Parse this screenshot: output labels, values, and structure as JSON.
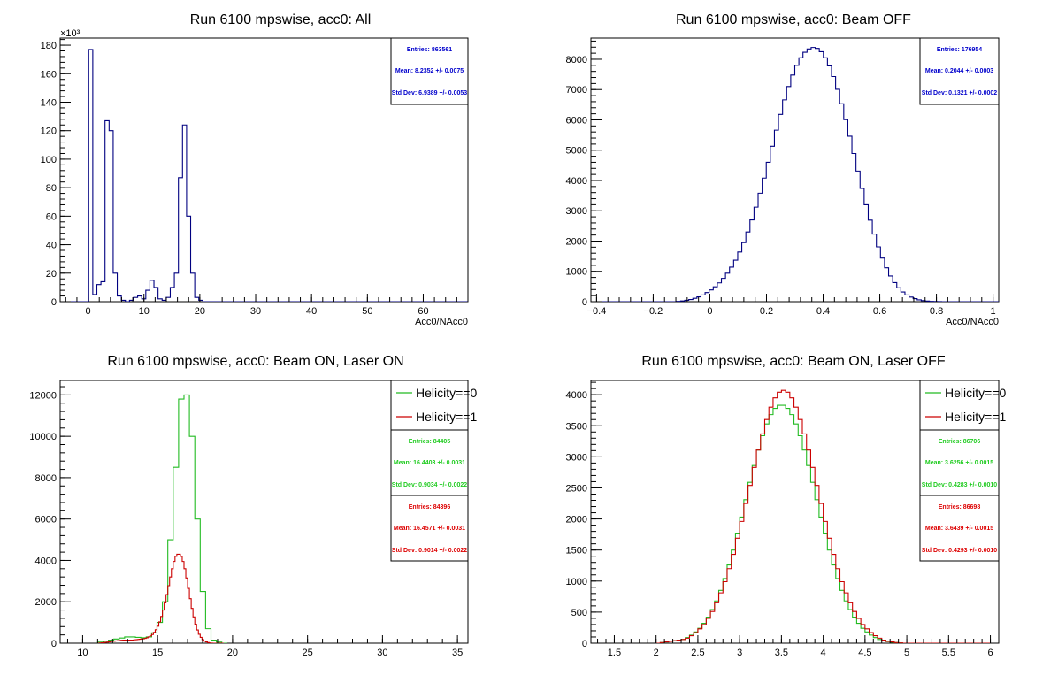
{
  "chart_data": [
    {
      "type": "histogram",
      "title": "Run 6100 mpswise, acc0: All",
      "xlabel": "Acc0/NAcc0",
      "ylabel": "",
      "xlim": [
        -5,
        68
      ],
      "ylim": [
        0,
        185
      ],
      "y_multiplier": "×10³",
      "x_ticks": [
        "0",
        "10",
        "20",
        "30",
        "40",
        "50",
        "60"
      ],
      "y_ticks": [
        "0",
        "20",
        "40",
        "60",
        "80",
        "100",
        "120",
        "140",
        "160",
        "180"
      ],
      "legend": [],
      "stats": [
        {
          "color": "#0000cc",
          "entries": "Entries: 863561",
          "mean": "Mean: 8.2352 +/- 0.0075",
          "std": "Std Dev: 6.9389 +/- 0.0053"
        }
      ],
      "series": [
        {
          "name": "",
          "color": "#000080",
          "bin_low": -5,
          "bin_width": 0.73,
          "counts": [
            0,
            0,
            0,
            0,
            0,
            0,
            0,
            177,
            5,
            12,
            14,
            127,
            120,
            20,
            4,
            1,
            0,
            1,
            3,
            4,
            2,
            8,
            15,
            10,
            2,
            1,
            3,
            10,
            20,
            87,
            124,
            60,
            20,
            3,
            1,
            0,
            0,
            0,
            0,
            0,
            0,
            0,
            0,
            0,
            0,
            0,
            0,
            0,
            0,
            0,
            0,
            0,
            0,
            0,
            0,
            0,
            0,
            0,
            0,
            0,
            0,
            0,
            0,
            0,
            0,
            0,
            0,
            0,
            0,
            0,
            0,
            0,
            0,
            0,
            0,
            0,
            0,
            0,
            0,
            0,
            0,
            0,
            0,
            0,
            0,
            0,
            0,
            0,
            0,
            0,
            0,
            0,
            0,
            0,
            0,
            0,
            0,
            0,
            0,
            0
          ]
        }
      ]
    },
    {
      "type": "histogram",
      "title": "Run 6100 mpswise, acc0: Beam OFF",
      "xlabel": "Acc0/NAcc0",
      "ylabel": "",
      "xlim": [
        -0.42,
        1.02
      ],
      "ylim": [
        0,
        8700
      ],
      "x_ticks": [
        "−0.4",
        "−0.2",
        "0",
        "0.2",
        "0.4",
        "0.6",
        "0.8",
        "1"
      ],
      "y_ticks": [
        "0",
        "1000",
        "2000",
        "3000",
        "4000",
        "5000",
        "6000",
        "7000",
        "8000"
      ],
      "legend": [],
      "stats": [
        {
          "color": "#0000cc",
          "entries": "Entries: 176954",
          "mean": "Mean: 0.2044 +/- 0.0003",
          "std": "Std Dev: 0.1321 +/- 0.0002"
        }
      ],
      "series": [
        {
          "name": "",
          "color": "#000080",
          "bin_low": -0.42,
          "bin_width": 0.0144,
          "counts": [
            0,
            0,
            0,
            0,
            0,
            0,
            0,
            0,
            0,
            0,
            0,
            0,
            0,
            0,
            0,
            0,
            0,
            0,
            0,
            0,
            0,
            10,
            25,
            45,
            70,
            110,
            160,
            220,
            300,
            390,
            490,
            620,
            770,
            940,
            1140,
            1370,
            1640,
            1950,
            2300,
            2700,
            3120,
            3580,
            4080,
            4600,
            5130,
            5660,
            6180,
            6660,
            7100,
            7480,
            7800,
            8050,
            8230,
            8340,
            8390,
            8360,
            8250,
            8050,
            7780,
            7430,
            7010,
            6530,
            6010,
            5460,
            4890,
            4310,
            3740,
            3200,
            2690,
            2230,
            1810,
            1440,
            1120,
            850,
            630,
            460,
            320,
            220,
            150,
            100,
            60,
            35,
            20,
            10,
            5,
            2,
            0,
            0,
            0,
            0,
            0,
            0,
            0,
            0,
            0,
            0,
            0,
            0,
            0,
            0
          ]
        }
      ]
    },
    {
      "type": "histogram",
      "title": "Run 6100 mpswise, acc0: Beam ON, Laser ON",
      "xlabel": "",
      "ylabel": "",
      "xlim": [
        8.5,
        35.7
      ],
      "ylim": [
        0,
        12700
      ],
      "x_ticks": [
        "10",
        "15",
        "20",
        "25",
        "30",
        "35"
      ],
      "y_ticks": [
        "0",
        "2000",
        "4000",
        "6000",
        "8000",
        "10000",
        "12000"
      ],
      "legend": [
        {
          "label": "Helicity==0",
          "color": "#22bb22"
        },
        {
          "label": "Helicity==1",
          "color": "#cc0000"
        }
      ],
      "stats": [
        {
          "color": "#22cc22",
          "entries": "Entries: 84405",
          "mean": "Mean: 16.4403 +/- 0.0031",
          "std": "Std Dev: 0.9034 +/- 0.0022"
        },
        {
          "color": "#dd0000",
          "entries": "Entries: 84396",
          "mean": "Mean: 16.4571 +/- 0.0031",
          "std": "Std Dev: 0.9014 +/- 0.0022"
        }
      ],
      "series": [
        {
          "name": "Helicity==0",
          "color": "#22bb22",
          "bin_low": 11.0,
          "bin_width": 0.36,
          "counts": [
            50,
            100,
            150,
            200,
            250,
            300,
            300,
            280,
            260,
            300,
            500,
            1000,
            2000,
            5000,
            8500,
            11800,
            12000,
            10000,
            6000,
            2500,
            700,
            150,
            50,
            0
          ]
        },
        {
          "name": "Helicity==1",
          "color": "#cc0000",
          "bin_low": 11.0,
          "bin_width": 0.12,
          "counts": [
            0,
            10,
            20,
            30,
            40,
            50,
            60,
            80,
            90,
            100,
            110,
            120,
            130,
            140,
            150,
            150,
            150,
            150,
            150,
            150,
            160,
            170,
            180,
            190,
            200,
            210,
            230,
            260,
            300,
            350,
            420,
            520,
            650,
            820,
            1030,
            1290,
            1600,
            1950,
            2350,
            2780,
            3200,
            3600,
            3950,
            4200,
            4300,
            4300,
            4200,
            3950,
            3600,
            3150,
            2650,
            2150,
            1680,
            1270,
            920,
            640,
            430,
            280,
            170,
            100,
            60,
            30,
            15,
            5,
            0,
            0,
            0,
            0,
            0,
            0
          ]
        }
      ]
    },
    {
      "type": "histogram",
      "title": "Run 6100 mpswise, acc0: Beam ON, Laser OFF",
      "xlabel": "",
      "ylabel": "",
      "xlim": [
        1.22,
        6.1
      ],
      "ylim": [
        0,
        4230
      ],
      "x_ticks": [
        "1.5",
        "2",
        "2.5",
        "3",
        "3.5",
        "4",
        "4.5",
        "5",
        "5.5",
        "6"
      ],
      "y_ticks": [
        "0",
        "500",
        "1000",
        "1500",
        "2000",
        "2500",
        "3000",
        "3500",
        "4000"
      ],
      "legend": [
        {
          "label": "Helicity==0",
          "color": "#22bb22"
        },
        {
          "label": "Helicity==1",
          "color": "#cc0000"
        }
      ],
      "stats": [
        {
          "color": "#22cc22",
          "entries": "Entries: 86706",
          "mean": "Mean: 3.6256 +/- 0.0015",
          "std": "Std Dev: 0.4283 +/- 0.0010"
        },
        {
          "color": "#dd0000",
          "entries": "Entries: 86698",
          "mean": "Mean: 3.6439 +/- 0.0015",
          "std": "Std Dev: 0.4293 +/- 0.0010"
        }
      ],
      "series": [
        {
          "name": "Helicity==0",
          "color": "#22bb22",
          "bin_low": 2.0,
          "bin_width": 0.05,
          "counts": [
            0,
            10,
            20,
            30,
            40,
            50,
            60,
            90,
            130,
            180,
            240,
            320,
            420,
            540,
            680,
            850,
            1040,
            1260,
            1500,
            1760,
            2030,
            2310,
            2590,
            2860,
            3110,
            3340,
            3530,
            3680,
            3780,
            3830,
            3830,
            3780,
            3680,
            3530,
            3340,
            3110,
            2860,
            2590,
            2310,
            2030,
            1760,
            1500,
            1260,
            1040,
            850,
            680,
            540,
            420,
            320,
            240,
            180,
            130,
            90,
            60,
            40,
            25,
            15,
            10,
            5,
            0,
            0,
            0,
            0,
            0,
            0,
            0,
            0,
            0,
            0,
            0,
            0,
            0,
            0,
            0,
            0,
            0,
            0,
            0,
            0,
            0
          ]
        },
        {
          "name": "Helicity==1",
          "color": "#cc0000",
          "bin_low": 2.0,
          "bin_width": 0.05,
          "counts": [
            0,
            10,
            20,
            30,
            40,
            50,
            60,
            80,
            120,
            170,
            230,
            300,
            400,
            510,
            650,
            810,
            990,
            1200,
            1430,
            1690,
            1960,
            2250,
            2540,
            2830,
            3110,
            3370,
            3600,
            3800,
            3950,
            4040,
            4070,
            4040,
            3950,
            3800,
            3600,
            3370,
            3110,
            2830,
            2540,
            2250,
            1960,
            1690,
            1430,
            1200,
            990,
            810,
            650,
            510,
            400,
            300,
            230,
            170,
            120,
            80,
            50,
            30,
            20,
            10,
            5,
            0,
            0,
            0,
            0,
            0,
            0,
            0,
            0,
            0,
            0,
            0,
            0,
            0,
            0,
            0,
            0,
            0,
            0,
            0,
            0,
            0
          ]
        }
      ]
    }
  ]
}
